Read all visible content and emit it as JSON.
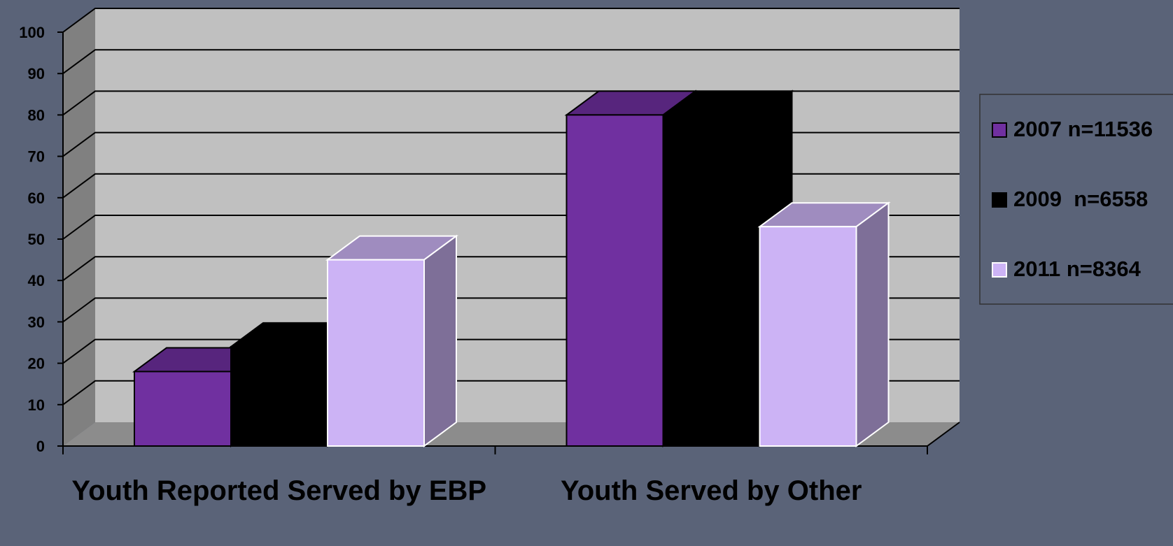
{
  "colors": {
    "background": "#5a6378",
    "wall": "#c0c0c0",
    "side_wall": "#808080",
    "floor": "#8c8c8c",
    "gridline": "#000000",
    "text": "#000000"
  },
  "chart_data": {
    "type": "bar",
    "style": "3d-clustered-column",
    "categories": [
      "Youth Reported Served by EBP",
      "Youth Served by Other"
    ],
    "series": [
      {
        "name": "2007 n=11536",
        "values": [
          18,
          80
        ],
        "color": "#7030a0"
      },
      {
        "name": "2009  n=6558",
        "values": [
          24,
          80
        ],
        "color": "#000000"
      },
      {
        "name": "2011 n=8364",
        "values": [
          45,
          53
        ],
        "color": "#ccb3f5"
      }
    ],
    "ylim": [
      0,
      100
    ],
    "yticks": [
      0,
      10,
      20,
      30,
      40,
      50,
      60,
      70,
      80,
      90,
      100
    ],
    "grid": true,
    "legend_position": "right"
  }
}
